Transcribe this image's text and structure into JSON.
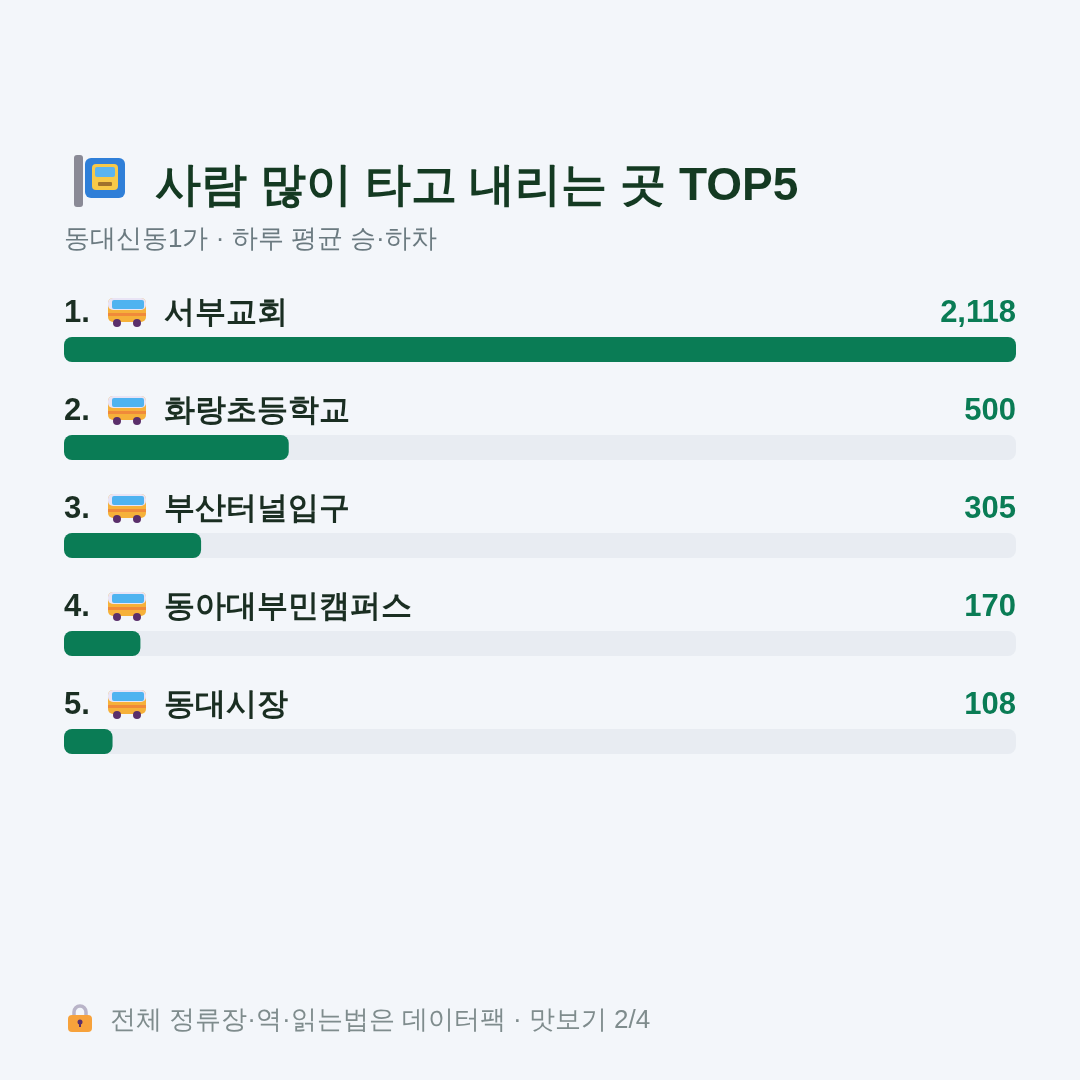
{
  "chart_data": {
    "type": "bar",
    "orientation": "horizontal",
    "title": "사람 많이 타고 내리는 곳 TOP5",
    "subtitle": "동대신동1가 · 하루 평균 승·하차",
    "categories": [
      "1. 서부교회",
      "2. 화랑초등학교",
      "3. 부산터널입구",
      "4. 동아대부민캠퍼스",
      "5. 동대시장"
    ],
    "values": [
      2118,
      500,
      305,
      170,
      108
    ],
    "value_labels": [
      "2,118",
      "500",
      "305",
      "170",
      "108"
    ],
    "color": "#0a7c55",
    "annotations": [
      "전체 정류장·역·읽는법은 데이터팩 · 맛보기 2/4"
    ]
  }
}
